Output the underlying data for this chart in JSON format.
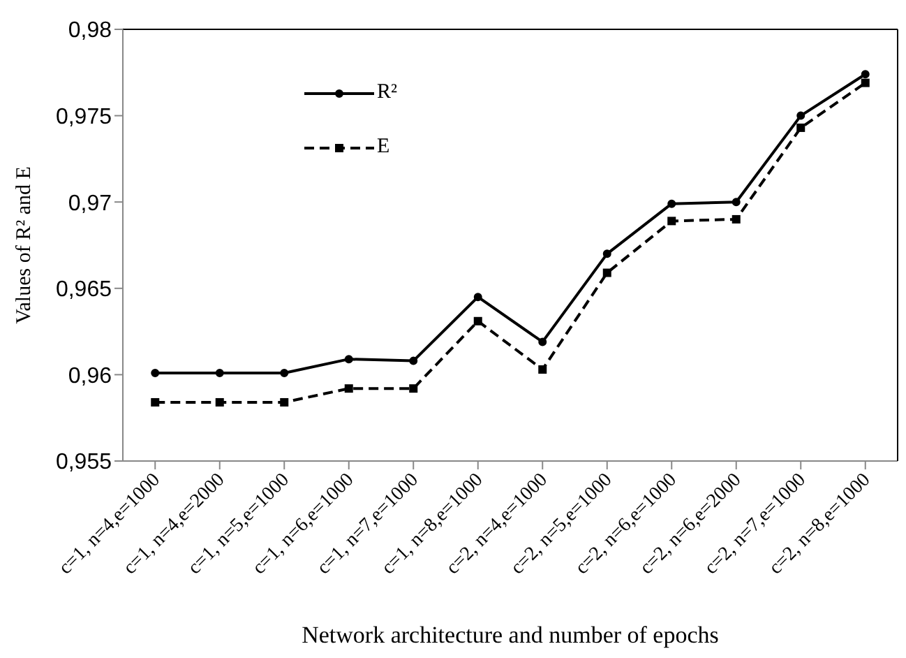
{
  "chart_data": {
    "type": "line",
    "xlabel": "Network architecture and number of epochs",
    "ylabel": "Values of R² and E",
    "categories": [
      "c=1, n=4,e=1000",
      "c=1, n=4,e=2000",
      "c=1, n=5,e=1000",
      "c=1, n=6,e=1000",
      "c=1, n=7,e=1000",
      "c=1, n=8,e=1000",
      "c=2, n=4,e=1000",
      "c=2, n=5,e=1000",
      "c=2, n=6,e=1000",
      "c=2, n=6,e=2000",
      "c=2, n=7,e=1000",
      "c=2, n=8,e=1000"
    ],
    "series": [
      {
        "name": "R²",
        "color": "#000000",
        "marker": "circle",
        "line_style": "solid",
        "values": [
          0.9601,
          0.9601,
          0.9601,
          0.9609,
          0.9608,
          0.9645,
          0.9619,
          0.967,
          0.9699,
          0.97,
          0.975,
          0.9774
        ]
      },
      {
        "name": "E",
        "color": "#000000",
        "marker": "square",
        "line_style": "dashed",
        "values": [
          0.9584,
          0.9584,
          0.9584,
          0.9592,
          0.9592,
          0.9631,
          0.9603,
          0.9659,
          0.9689,
          0.969,
          0.9743,
          0.9769
        ]
      }
    ],
    "ylim": [
      0.955,
      0.98
    ],
    "yticks": [
      {
        "value": 0.955,
        "label": "0,955"
      },
      {
        "value": 0.96,
        "label": "0,96"
      },
      {
        "value": 0.965,
        "label": "0,965"
      },
      {
        "value": 0.97,
        "label": "0,97"
      },
      {
        "value": 0.975,
        "label": "0,975"
      },
      {
        "value": 0.98,
        "label": "0,98"
      }
    ],
    "grid": false,
    "legend": "top left"
  }
}
